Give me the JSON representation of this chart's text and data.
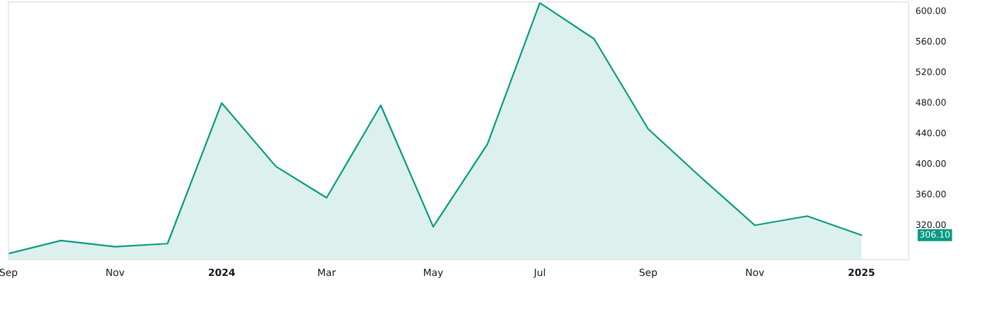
{
  "chart_data": {
    "type": "area",
    "x": [
      "2023-09",
      "2023-10",
      "2023-11",
      "2023-12",
      "2024-01",
      "2024-02",
      "2024-03",
      "2024-04",
      "2024-05",
      "2024-06",
      "2024-07",
      "2024-08",
      "2024-09",
      "2024-10",
      "2024-11",
      "2024-12",
      "2025-01"
    ],
    "series": [
      {
        "color": "#089981",
        "values": [
          282,
          299,
          291,
          295,
          479,
          396,
          355,
          476,
          317,
          425,
          610,
          563,
          445,
          382,
          319,
          331,
          306.1
        ]
      }
    ],
    "xlim": [
      "2023-09-01",
      "2025-01-28"
    ],
    "xticks": [
      {
        "value": "2023-09",
        "label": "Sep"
      },
      {
        "value": "2023-11",
        "label": "Nov"
      },
      {
        "value": "2024-01",
        "label": "2024"
      },
      {
        "value": "2024-03",
        "label": "Mar"
      },
      {
        "value": "2024-05",
        "label": "May"
      },
      {
        "value": "2024-07",
        "label": "Jul"
      },
      {
        "value": "2024-09",
        "label": "Sep"
      },
      {
        "value": "2024-11",
        "label": "Nov"
      },
      {
        "value": "2025-01",
        "label": "2025"
      }
    ],
    "ylim": [
      274,
      611
    ],
    "yticks": [
      {
        "value": 320,
        "label": "320.00"
      },
      {
        "value": 360,
        "label": "360.00"
      },
      {
        "value": 400,
        "label": "400.00"
      },
      {
        "value": 440,
        "label": "440.00"
      },
      {
        "value": 480,
        "label": "480.00"
      },
      {
        "value": 520,
        "label": "520.00"
      },
      {
        "value": 560,
        "label": "560.00"
      },
      {
        "value": 600,
        "label": "600.00"
      }
    ],
    "annotations": [
      "306.10"
    ]
  }
}
